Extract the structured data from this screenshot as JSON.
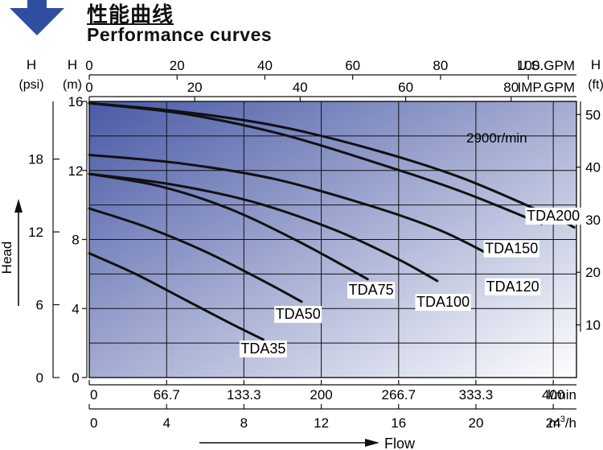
{
  "header": {
    "title_cn": "性能曲线",
    "title_en": "Performance curves",
    "arrow_icon": "down-arrow-icon",
    "arrow_color": "#2f4ea0"
  },
  "chart_data": {
    "type": "line",
    "speed_label": "2900r/min",
    "background_gradient": [
      "#4a5aa6",
      "#ffffff"
    ],
    "left_axes": [
      {
        "name": "H",
        "unit": "(m)",
        "range": [
          0,
          16
        ],
        "ticks": [
          0,
          4,
          8,
          12,
          16
        ]
      },
      {
        "name": "H",
        "unit": "(psi)",
        "ticks": [
          0,
          6,
          12,
          18
        ],
        "ticks_at_m": [
          0,
          4.22,
          8.44,
          12.66
        ]
      }
    ],
    "right_axis": {
      "name": "H",
      "unit": "(ft)",
      "ticks": [
        10,
        20,
        30,
        40,
        50
      ],
      "ticks_at_m": [
        3.05,
        6.1,
        9.14,
        12.19,
        15.24
      ]
    },
    "top_axes": [
      {
        "unit": "U.S.GPM",
        "ticks": [
          0,
          20,
          40,
          60,
          80,
          100
        ],
        "ticks_at_lmin": [
          0,
          75.7,
          151.4,
          227.1,
          302.8,
          378.5
        ]
      },
      {
        "unit": "IMP.GPM",
        "ticks": [
          0,
          20,
          40,
          60,
          80
        ],
        "ticks_at_lmin": [
          0,
          90.9,
          181.8,
          272.8,
          363.7
        ]
      }
    ],
    "bottom_axes": [
      {
        "unit": "l/min",
        "range": [
          0,
          420
        ],
        "ticks": [
          "0",
          "66.7",
          "133.3",
          "200",
          "266.7",
          "333.3",
          "400"
        ],
        "tick_values": [
          0,
          66.7,
          133.3,
          200,
          266.7,
          333.3,
          400
        ]
      },
      {
        "unit": "m³/h",
        "unit_base": "m",
        "unit_sup": "3",
        "unit_tail": "/h",
        "ticks": [
          "0",
          "4",
          "8",
          "12",
          "16",
          "20",
          "24"
        ],
        "tick_values": [
          0,
          4,
          8,
          12,
          16,
          20,
          24
        ]
      }
    ],
    "head_label": "Head",
    "flow_label": "Flow",
    "grid": true,
    "series": [
      {
        "name": "TDA35",
        "x": [
          0,
          40,
          80,
          120,
          150
        ],
        "y": [
          7.2,
          6.0,
          4.6,
          3.2,
          2.2
        ],
        "label_x": 150,
        "label_y": 1.4
      },
      {
        "name": "TDA50",
        "x": [
          0,
          50,
          100,
          150,
          183
        ],
        "y": [
          9.8,
          8.7,
          7.3,
          5.6,
          4.4
        ],
        "label_x": 180,
        "label_y": 3.4
      },
      {
        "name": "TDA75",
        "x": [
          0,
          60,
          120,
          180,
          240
        ],
        "y": [
          11.8,
          11.1,
          9.8,
          7.9,
          5.7
        ],
        "label_x": 243,
        "label_y": 4.8
      },
      {
        "name": "TDA100",
        "x": [
          0,
          70,
          140,
          210,
          265,
          300
        ],
        "y": [
          11.8,
          11.2,
          10.2,
          8.6,
          6.9,
          5.6
        ],
        "label_x": 305,
        "label_y": 4.1
      },
      {
        "name": "TDA120",
        "x": [
          0,
          80,
          160,
          240,
          300,
          343
        ],
        "y": [
          12.9,
          12.4,
          11.5,
          10.0,
          8.6,
          7.2
        ],
        "label_x": 365,
        "label_y": 5.0
      },
      {
        "name": "TDA150",
        "x": [
          0,
          80,
          160,
          240,
          320,
          390
        ],
        "y": [
          15.9,
          15.3,
          14.2,
          12.6,
          10.8,
          8.9
        ],
        "label_x": 364,
        "label_y": 7.2
      },
      {
        "name": "TDA200",
        "x": [
          0,
          80,
          160,
          240,
          320,
          400,
          418
        ],
        "y": [
          15.9,
          15.4,
          14.6,
          13.3,
          11.6,
          9.3,
          8.7
        ],
        "label_x": 400,
        "label_y": 9.1
      }
    ]
  }
}
